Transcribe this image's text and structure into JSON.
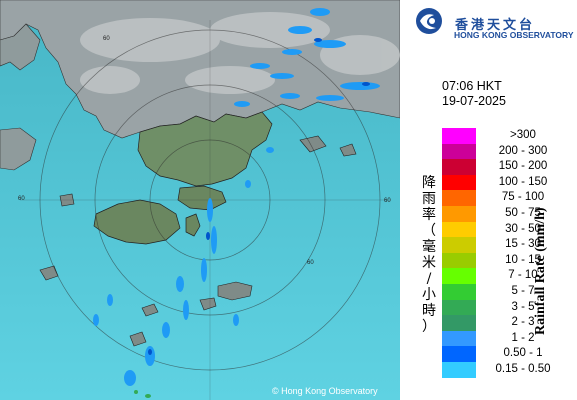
{
  "header": {
    "logo_zh": "香港天文台",
    "logo_en": "HONG KONG OBSERVATORY"
  },
  "observation": {
    "time": "07:06 HKT",
    "date": "19-07-2025"
  },
  "legend": {
    "title_en": "Rainfall Rate (mm/h)",
    "title_zh": "降雨率（毫米/小時）",
    "items": [
      {
        "label": ">300",
        "color": "#ff00ff"
      },
      {
        "label": "200 - 300",
        "color": "#cc0099"
      },
      {
        "label": "150 - 200",
        "color": "#cc0033"
      },
      {
        "label": "100 - 150",
        "color": "#ff0000"
      },
      {
        "label": "75 - 100",
        "color": "#ff6600"
      },
      {
        "label": "50 - 75",
        "color": "#ff9900"
      },
      {
        "label": "30 - 50",
        "color": "#ffcc00"
      },
      {
        "label": "15 - 30",
        "color": "#cccc00"
      },
      {
        "label": "10 - 15",
        "color": "#99cc00"
      },
      {
        "label": "7 - 10",
        "color": "#66ff00"
      },
      {
        "label": "5 - 7",
        "color": "#33cc33"
      },
      {
        "label": "3 - 5",
        "color": "#33aa55"
      },
      {
        "label": "2 - 3",
        "color": "#339966"
      },
      {
        "label": "1 - 2",
        "color": "#3399ff"
      },
      {
        "label": "0.50 - 1",
        "color": "#0066ff"
      },
      {
        "label": "0.15 - 0.50",
        "color": "#33ccff"
      }
    ]
  },
  "map": {
    "range_ring_labels": [
      "60",
      "60",
      "60",
      "60"
    ],
    "copyright": "© Hong Kong Observatory"
  }
}
